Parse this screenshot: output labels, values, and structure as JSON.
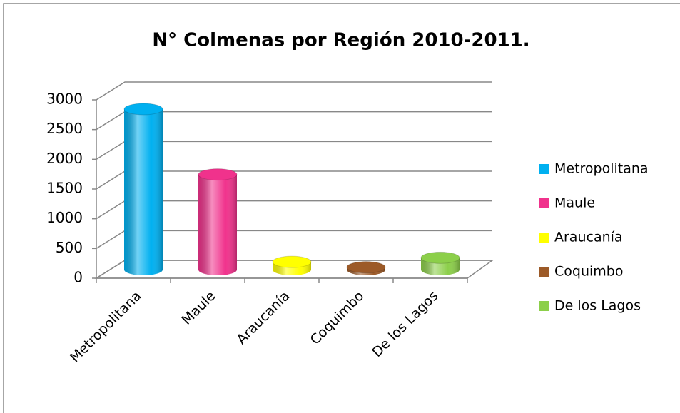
{
  "chart_data": {
    "type": "bar3d",
    "title": "N° Colmenas por Región 2010-2011.",
    "categories": [
      "Metropolitana",
      "Maule",
      "Araucanía",
      "Coquimbo",
      "De los Lagos"
    ],
    "series": [
      {
        "name": "Metropolitana",
        "color": "#00b0f0",
        "values": [
          2700,
          null,
          null,
          null,
          null
        ]
      },
      {
        "name": "Maule",
        "color": "#f0328c",
        "values": [
          null,
          1600,
          null,
          null,
          null
        ]
      },
      {
        "name": "Araucanía",
        "color": "#ffff00",
        "values": [
          null,
          null,
          130,
          null,
          null
        ]
      },
      {
        "name": "Coquimbo",
        "color": "#9c5a28",
        "values": [
          null,
          null,
          null,
          40,
          null
        ]
      },
      {
        "name": "De los Lagos",
        "color": "#8ccf4a",
        "values": [
          null,
          null,
          null,
          null,
          200
        ]
      }
    ],
    "ylim": [
      0,
      3000
    ],
    "yticks": [
      0,
      500,
      1000,
      1500,
      2000,
      2500,
      3000
    ],
    "grid": true,
    "legend": "right"
  }
}
